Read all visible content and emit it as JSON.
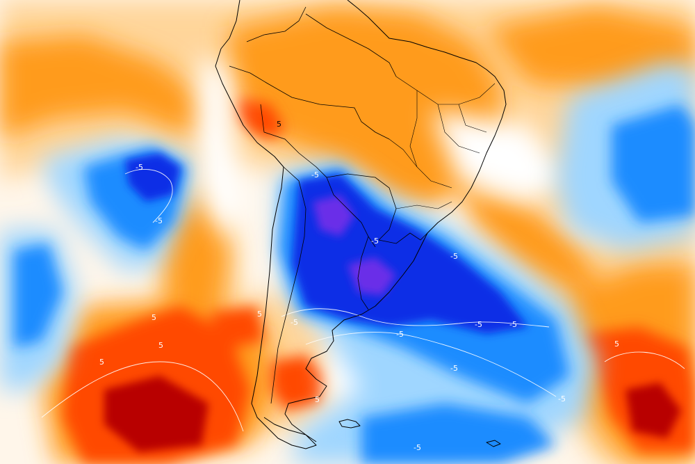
{
  "map": {
    "colors": {
      "strong_warm": "#b80000",
      "warm": "#ff4a00",
      "warm_mid": "#ff9b1e",
      "warm_light": "#ffd59a",
      "neutral": "#ffffff",
      "cool_light": "#9fd6ff",
      "cool": "#1a8cff",
      "cool_strong": "#0c2ee6",
      "cool_deep": "#6a2ee8",
      "coastline": "#000000",
      "contour": "#ffffff"
    },
    "contour_labels": [
      "5",
      "-5",
      "-5",
      "5",
      "-5",
      "5",
      "5",
      "5",
      "-5",
      "-5",
      "-5",
      "-5",
      "5",
      "-5",
      "-5",
      "5",
      "-5",
      "-5",
      "-5"
    ],
    "features": [
      "south-america-coastline",
      "country-borders",
      "brazil-state-borders",
      "falkland-islands",
      "south-georgia"
    ]
  }
}
